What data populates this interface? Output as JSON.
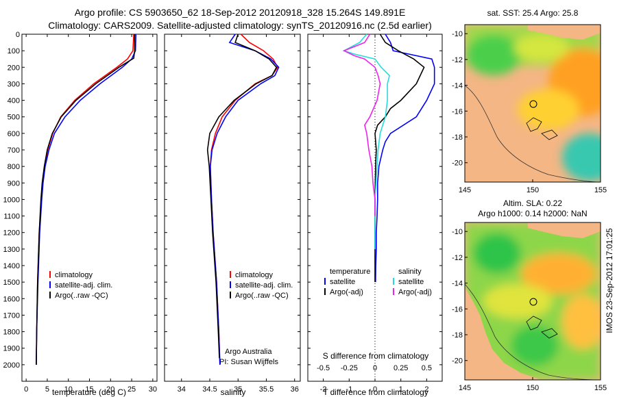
{
  "header": {
    "line1": "Argo profile: CS 5903650_62 18-Sep-2012 20120918_328 15.264S 149.891E",
    "line2": "Climatology: CARS2009. Satellite-adjusted climatology: synTS_20120916.nc (2.5d earlier)"
  },
  "colors": {
    "climatology": "#ff0000",
    "satellite": "#0000ff",
    "argo": "#000000",
    "sat_salinity": "#22dddd",
    "argo_salinity_adj": "#ee22ee",
    "land": "#f4b684"
  },
  "side_stamp": "IMOS 23-Sep-2012 17:01:25",
  "chart_data": [
    {
      "type": "line",
      "name": "temperature-profile",
      "xlabel": "temperature (deg C)",
      "ylabel": "",
      "xlim": [
        -1,
        31
      ],
      "ylim": [
        2100,
        0
      ],
      "xticks": [
        0,
        5,
        10,
        15,
        20,
        25,
        30
      ],
      "yticks": [
        0,
        100,
        200,
        300,
        400,
        500,
        600,
        700,
        800,
        900,
        1000,
        1100,
        1200,
        1300,
        1400,
        1500,
        1600,
        1700,
        1800,
        1900,
        2000
      ],
      "legend": [
        "climatology",
        "satellite-adj. clim.",
        "Argo(..raw -QC)"
      ],
      "series": [
        {
          "name": "climatology",
          "depth": [
            0,
            100,
            150,
            200,
            300,
            400,
            500,
            600,
            700,
            800,
            900,
            1000,
            1200,
            1500,
            1800,
            2000
          ],
          "values": [
            25.5,
            25.3,
            24.0,
            21.5,
            16.0,
            11.5,
            8.2,
            6.3,
            5.1,
            4.4,
            3.9,
            3.6,
            3.1,
            2.7,
            2.5,
            2.4
          ]
        },
        {
          "name": "satellite-adj. clim.",
          "depth": [
            0,
            100,
            150,
            200,
            300,
            400,
            500,
            600,
            700,
            800,
            900,
            1000,
            1200,
            1500,
            1800,
            2000
          ],
          "values": [
            26.0,
            25.9,
            25.0,
            22.8,
            17.5,
            12.8,
            9.2,
            6.7,
            5.4,
            4.5,
            4.0,
            3.7,
            3.2,
            2.8,
            2.5,
            2.4
          ]
        },
        {
          "name": "Argo(..raw -QC)",
          "depth": [
            0,
            100,
            145,
            200,
            300,
            400,
            500,
            600,
            700,
            800,
            900,
            1000,
            1200,
            1500,
            1800,
            2000
          ],
          "values": [
            25.7,
            25.7,
            25.5,
            22.0,
            16.5,
            11.8,
            8.3,
            6.2,
            5.0,
            4.3,
            3.8,
            3.5,
            3.1,
            2.7,
            2.5,
            2.4
          ]
        }
      ]
    },
    {
      "type": "line",
      "name": "salinity-profile",
      "xlabel": "salinity",
      "xlim": [
        33.7,
        36.1
      ],
      "ylim": [
        2100,
        0
      ],
      "xticks": [
        34,
        34.5,
        35,
        35.5,
        36
      ],
      "legend": [
        "climatology",
        "satellite-adj. clim.",
        "Argo(..raw -QC)"
      ],
      "annotation": [
        "Argo Australia",
        "PI: Susan Wijffels"
      ],
      "series": [
        {
          "name": "climatology",
          "depth": [
            0,
            50,
            100,
            150,
            200,
            250,
            300,
            400,
            500,
            600,
            700,
            800,
            1000,
            1200,
            1500,
            1800,
            2000
          ],
          "values": [
            35.05,
            35.2,
            35.45,
            35.62,
            35.7,
            35.6,
            35.3,
            34.95,
            34.72,
            34.6,
            34.53,
            34.51,
            34.53,
            34.56,
            34.62,
            34.66,
            34.68
          ]
        },
        {
          "name": "satellite-adj. clim.",
          "depth": [
            0,
            50,
            100,
            150,
            200,
            250,
            300,
            400,
            500,
            600,
            700,
            800,
            1000,
            1200,
            1500,
            1800,
            2000
          ],
          "values": [
            34.95,
            34.85,
            35.3,
            35.58,
            35.72,
            35.65,
            35.4,
            35.0,
            34.78,
            34.63,
            34.54,
            34.51,
            34.53,
            34.56,
            34.62,
            34.66,
            34.68
          ]
        },
        {
          "name": "Argo(..raw -QC)",
          "depth": [
            0,
            50,
            100,
            150,
            200,
            250,
            300,
            400,
            500,
            600,
            700,
            800,
            1000,
            1200,
            1500,
            1800,
            1960
          ],
          "values": [
            35.0,
            34.95,
            35.3,
            35.55,
            35.68,
            35.6,
            35.32,
            34.93,
            34.66,
            34.5,
            34.46,
            34.49,
            34.52,
            34.55,
            34.61,
            34.65,
            34.67
          ]
        }
      ]
    },
    {
      "type": "line",
      "name": "difference-profile",
      "xlabel": "T difference from climatology",
      "xlabel_top": "S difference from climatology",
      "xlim": [
        -2.6,
        2.6
      ],
      "ylim": [
        2100,
        0
      ],
      "xticks": [
        -2,
        -1,
        0,
        1,
        2
      ],
      "xticks_top": [
        -0.5,
        -0.25,
        0,
        0.25,
        0.5
      ],
      "legend_temperature": [
        "temperature",
        "satellite",
        "Argo(-adj)"
      ],
      "legend_salinity": [
        "salinity",
        "satellite",
        "Argo(-adj)"
      ],
      "series": [
        {
          "name": "temperature satellite",
          "depth": [
            0,
            50,
            100,
            150,
            200,
            300,
            400,
            500,
            600,
            650,
            700,
            800,
            900,
            1000,
            1100,
            1200,
            1300,
            1400,
            1500
          ],
          "values": [
            0.4,
            0.6,
            0.7,
            2.2,
            2.3,
            2.3,
            2.0,
            1.6,
            0.6,
            0.4,
            0.3,
            0.15,
            0.1,
            0.1,
            0.08,
            0.05,
            0.05,
            0.03,
            0.02
          ]
        },
        {
          "name": "temperature Argo(-adj)",
          "depth": [
            0,
            50,
            100,
            150,
            200,
            300,
            400,
            450,
            500,
            550,
            600,
            700,
            800,
            1000,
            1200,
            1400,
            1500
          ],
          "values": [
            0.2,
            0.4,
            0.9,
            1.5,
            1.9,
            1.6,
            1.0,
            0.6,
            0.4,
            0.1,
            0.0,
            0.05,
            0.02,
            0.0,
            0.0,
            0.0,
            0.0
          ]
        },
        {
          "name": "salinity satellite",
          "depth": [
            0,
            50,
            100,
            120,
            150,
            200,
            250,
            300,
            400,
            500,
            600,
            700,
            800,
            1000,
            1200,
            1300
          ],
          "values": [
            -0.08,
            -0.15,
            -0.3,
            -0.2,
            0.0,
            0.06,
            0.14,
            0.12,
            0.12,
            0.1,
            0.05,
            0.03,
            0.02,
            0.0,
            0.0,
            0.0
          ]
        },
        {
          "name": "salinity Argo(-adj)",
          "depth": [
            0,
            50,
            100,
            130,
            150,
            200,
            250,
            300,
            400,
            500,
            550,
            600,
            700,
            800,
            900,
            1000,
            1100
          ],
          "values": [
            -0.05,
            -0.1,
            -0.3,
            -0.2,
            -0.1,
            0.0,
            0.03,
            0.05,
            0.02,
            -0.05,
            -0.1,
            -0.08,
            -0.06,
            -0.03,
            -0.02,
            0.0,
            0.0
          ]
        }
      ]
    },
    {
      "type": "heatmap",
      "name": "sst-map",
      "title": "sat. SST: 25.4 Argo: 25.8",
      "xlim": [
        145,
        155
      ],
      "ylim": [
        -21.5,
        -9.3
      ],
      "xticks": [
        145,
        150,
        155
      ],
      "yticks": [
        -10,
        -12,
        -14,
        -16,
        -18,
        -20
      ],
      "argo_position": {
        "lon": 149.891,
        "lat": -15.264
      }
    },
    {
      "type": "heatmap",
      "name": "sla-map",
      "title": "Altim. SLA: 0.22",
      "subtitle": "Argo h1000: 0.14 h2000: NaN",
      "xlim": [
        145,
        155
      ],
      "ylim": [
        -21.5,
        -9.3
      ],
      "xticks": [
        145,
        150,
        155
      ],
      "yticks": [
        -10,
        -12,
        -14,
        -16,
        -18,
        -20
      ],
      "argo_position": {
        "lon": 149.891,
        "lat": -15.264
      }
    }
  ]
}
